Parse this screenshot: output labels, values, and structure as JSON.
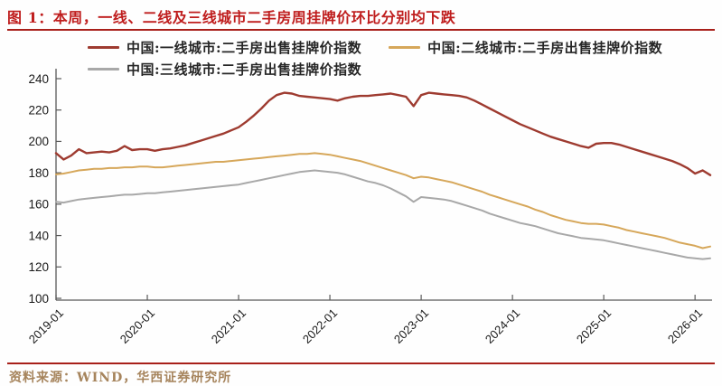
{
  "title": "图 1：本周，一线、二线及三线城市二手房周挂牌价环比分别均下跌",
  "footer": {
    "source_text": "资料来源：WIND，华西证券研究所"
  },
  "colors": {
    "title_red": "#bf1d1d",
    "rule_red": "#a8201a",
    "source_text": "#a6845c",
    "axis": "#595959",
    "tick_label": "#1a1a1a",
    "tier1": "#9e3b30",
    "tier2": "#d6a75a",
    "tier3": "#a8a8a8"
  },
  "chart_data": {
    "type": "line",
    "title": "",
    "xlabel": "",
    "ylabel": "",
    "grid": false,
    "legend_position": "top",
    "x_start": "2019-01",
    "x_interval": "monthly",
    "xtick_labels": [
      "2019-01",
      "2020-01",
      "2021-01",
      "2022-01",
      "2023-01",
      "2024-01",
      "2025-01",
      "2026-01"
    ],
    "ylim": [
      100,
      240
    ],
    "yticks": [
      100,
      120,
      140,
      160,
      180,
      200,
      220,
      240
    ],
    "series": [
      {
        "name": "中国:一线城市:二手房出售挂牌价指数",
        "color": "#9e3b30",
        "values": [
          192.5,
          188.5,
          191,
          195,
          192.5,
          193,
          193.5,
          193,
          194,
          197,
          194.5,
          195,
          195,
          194,
          195,
          195.5,
          196.5,
          197.5,
          199,
          200.5,
          202,
          203.5,
          205,
          207,
          209,
          212.5,
          216.5,
          221,
          226,
          229.5,
          231,
          230.5,
          229,
          228.5,
          228,
          227.5,
          227,
          226,
          227.5,
          228.5,
          229,
          229,
          229.5,
          230,
          230.5,
          229.5,
          228.5,
          222.5,
          229.5,
          231,
          230.5,
          230,
          229.5,
          229,
          228,
          226,
          223.5,
          221,
          218.5,
          216,
          213.5,
          211,
          209,
          207,
          205,
          203,
          201.5,
          200,
          198.5,
          197,
          196,
          198.5,
          199,
          199,
          198,
          196.5,
          195,
          193.5,
          192,
          190.5,
          189,
          187.5,
          185.5,
          183,
          179.5,
          181.5,
          178.5
        ]
      },
      {
        "name": "中国:二线城市:二手房出售挂牌价指数",
        "color": "#d6a75a",
        "values": [
          179,
          179.5,
          180.5,
          181.5,
          182,
          182.5,
          182.5,
          183,
          183,
          183.5,
          183.5,
          184,
          184,
          183.5,
          183.5,
          184,
          184.5,
          185,
          185.5,
          186,
          186.5,
          187,
          187,
          187.5,
          188,
          188.5,
          189,
          189.5,
          190,
          190.5,
          191,
          191.5,
          192,
          192,
          192.5,
          192,
          191.5,
          190.5,
          189.5,
          188.5,
          187.5,
          186,
          184.5,
          183,
          181.5,
          180,
          178.5,
          176.5,
          177.5,
          177,
          176,
          175,
          174,
          172.5,
          171,
          169.5,
          168,
          166,
          164.5,
          163,
          161.5,
          160,
          158.5,
          156.5,
          155,
          153,
          151.5,
          150,
          149,
          148,
          147.5,
          147.5,
          147,
          146,
          145,
          143.5,
          142.5,
          141.5,
          140.5,
          139.5,
          138.5,
          137,
          135.5,
          134.5,
          133.5,
          132,
          133
        ]
      },
      {
        "name": "中国:三线城市:二手房出售挂牌价指数",
        "color": "#a8a8a8",
        "values": [
          161.5,
          161,
          162,
          163,
          163.5,
          164,
          164.5,
          165,
          165.5,
          166,
          166,
          166.5,
          167,
          167,
          167.5,
          168,
          168.5,
          169,
          169.5,
          170,
          170.5,
          171,
          171.5,
          172,
          172.5,
          173.5,
          174.5,
          175.5,
          176.5,
          177.5,
          178.5,
          179.5,
          180.5,
          181,
          181.5,
          181,
          180.5,
          180,
          179,
          177.5,
          176,
          174.5,
          173.5,
          172,
          170,
          167.5,
          165,
          161.5,
          164.5,
          164,
          163.5,
          163,
          162,
          160.5,
          159,
          157.5,
          156,
          154,
          152.5,
          151,
          149.5,
          148,
          147,
          146,
          144.5,
          143,
          141.5,
          140.5,
          139.5,
          138.5,
          138,
          137.5,
          137,
          136,
          135,
          134,
          133,
          132,
          131,
          130,
          129,
          128,
          127,
          126,
          125.5,
          125,
          125.5
        ]
      }
    ]
  }
}
